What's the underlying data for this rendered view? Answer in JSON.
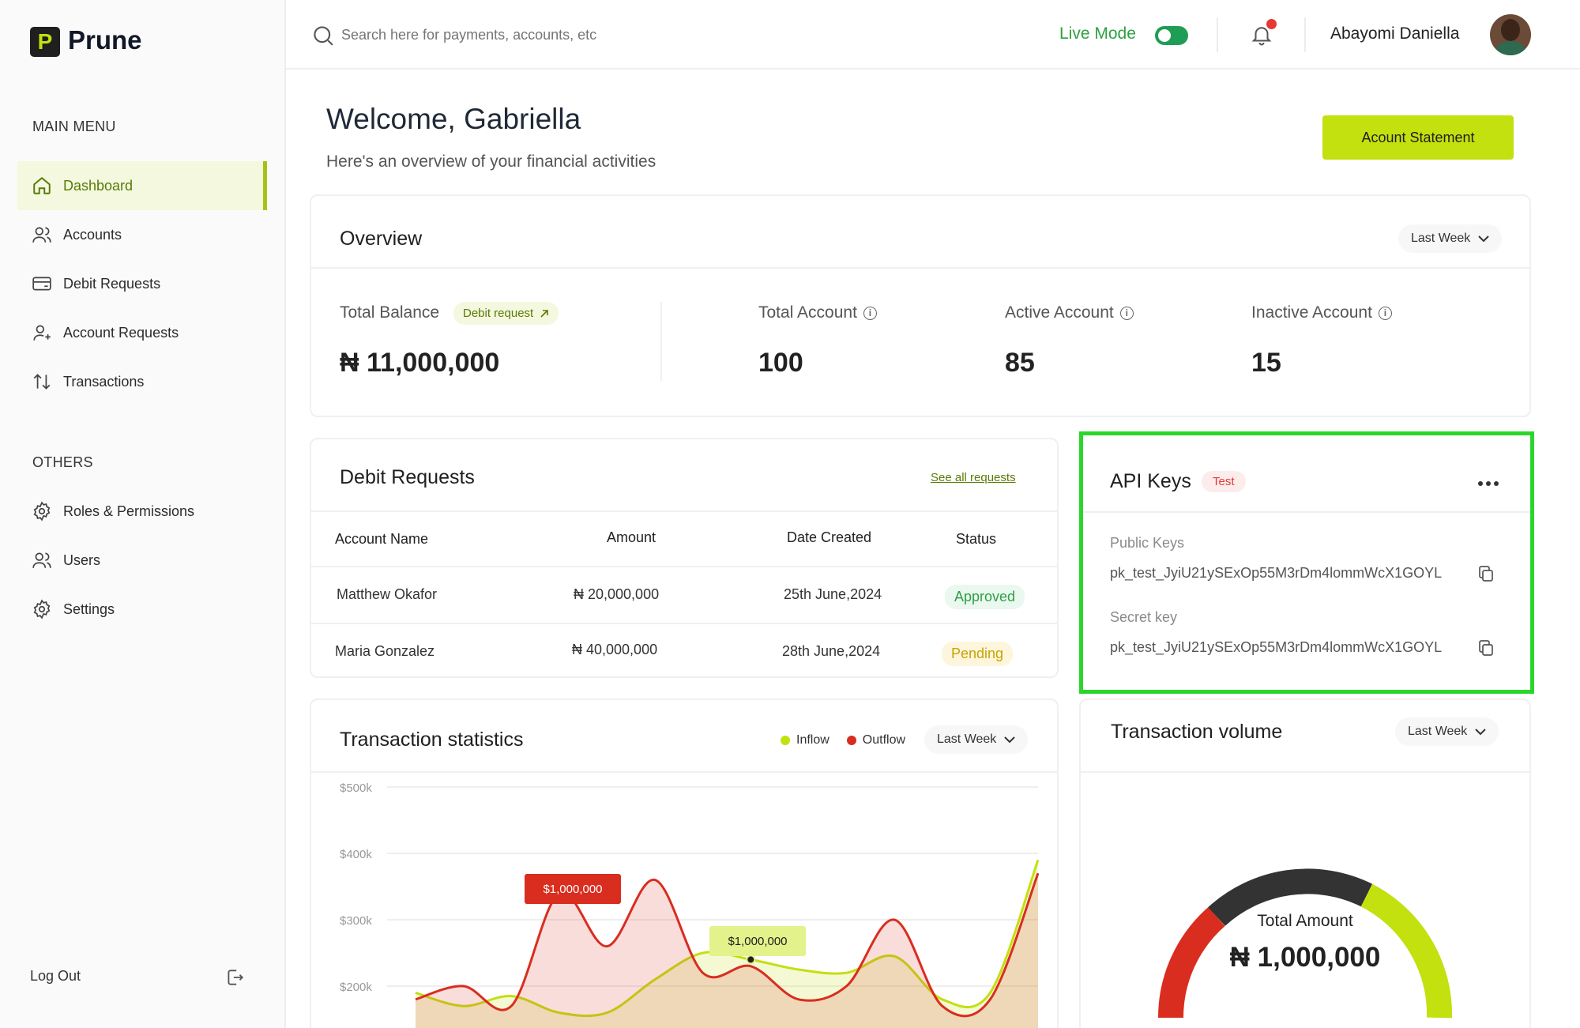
{
  "app": {
    "logo_letter": "P",
    "name": "Prune"
  },
  "sidebar": {
    "main_heading": "MAIN MENU",
    "main_items": [
      {
        "label": "Dashboard",
        "icon": "home-icon",
        "active": true
      },
      {
        "label": "Accounts",
        "icon": "users-icon"
      },
      {
        "label": "Debit Requests",
        "icon": "card-icon"
      },
      {
        "label": "Account Requests",
        "icon": "user-plus-icon"
      },
      {
        "label": "Transactions",
        "icon": "arrows-updown-icon"
      }
    ],
    "others_heading": "OTHERS",
    "other_items": [
      {
        "label": "Roles & Permissions",
        "icon": "gear-icon"
      },
      {
        "label": "Users",
        "icon": "users-icon"
      },
      {
        "label": "Settings",
        "icon": "gear-icon"
      }
    ],
    "logout_label": "Log Out"
  },
  "header": {
    "search_placeholder": "Search here for payments, accounts, etc",
    "live_mode_label": "Live Mode",
    "live_mode_on": true,
    "user_name": "Abayomi Daniella"
  },
  "welcome": {
    "title": "Welcome, Gabriella",
    "subtitle": "Here's an overview of your financial activities",
    "statement_button": "Acount Statement"
  },
  "overview": {
    "title": "Overview",
    "period": "Last Week",
    "total_balance_label": "Total Balance",
    "debit_request_badge": "Debit request",
    "total_balance_value": "₦ 11,000,000",
    "stats": [
      {
        "label": "Total Account",
        "value": "100"
      },
      {
        "label": "Active Account",
        "value": "85"
      },
      {
        "label": "Inactive Account",
        "value": "15"
      }
    ]
  },
  "debit_requests": {
    "title": "Debit Requests",
    "see_all": "See all requests",
    "columns": [
      "Account Name",
      "Amount",
      "Date Created",
      "Status"
    ],
    "rows": [
      {
        "name": "Matthew Okafor",
        "amount": "₦ 20,000,000",
        "date": "25th June,2024",
        "status": "Approved"
      },
      {
        "name": "Maria Gonzalez",
        "amount": "₦ 40,000,000",
        "date": "28th June,2024",
        "status": "Pending"
      }
    ]
  },
  "api_keys": {
    "title": "API Keys",
    "env_badge": "Test",
    "public_label": "Public Keys",
    "public_value": "pk_test_JyiU21ySExOp55M3rDm4lommWcX1GOYL",
    "secret_label": "Secret key",
    "secret_value": "pk_test_JyiU21ySExOp55M3rDm4lommWcX1GOYL"
  },
  "transaction_stats": {
    "title": "Transaction statistics",
    "legend_inflow": "Inflow",
    "legend_outflow": "Outflow",
    "period": "Last Week",
    "inflow_color": "#c3e00f",
    "outflow_color": "#d92d20",
    "tooltip_outflow": "$1,000,000",
    "tooltip_inflow": "$1,000,000"
  },
  "transaction_volume": {
    "title": "Transaction volume",
    "period": "Last Week",
    "total_label": "Total Amount",
    "total_value": "₦ 1,000,000"
  },
  "chart_data": {
    "type": "area",
    "title": "Transaction statistics",
    "y_ticks": [
      "$500k",
      "$400k",
      "$300k",
      "$200k"
    ],
    "ylim": [
      200000,
      500000
    ],
    "legend_placement": "top-right",
    "grid": true,
    "series": [
      {
        "name": "Inflow",
        "color": "#c3e00f",
        "values": [
          190000,
          170000,
          185000,
          160000,
          160000,
          210000,
          250000,
          240000,
          225000,
          220000,
          245000,
          180000,
          190000,
          390000
        ]
      },
      {
        "name": "Outflow",
        "color": "#d92d20",
        "values": [
          180000,
          200000,
          170000,
          340000,
          260000,
          360000,
          220000,
          230000,
          180000,
          200000,
          300000,
          170000,
          180000,
          370000
        ]
      }
    ]
  }
}
